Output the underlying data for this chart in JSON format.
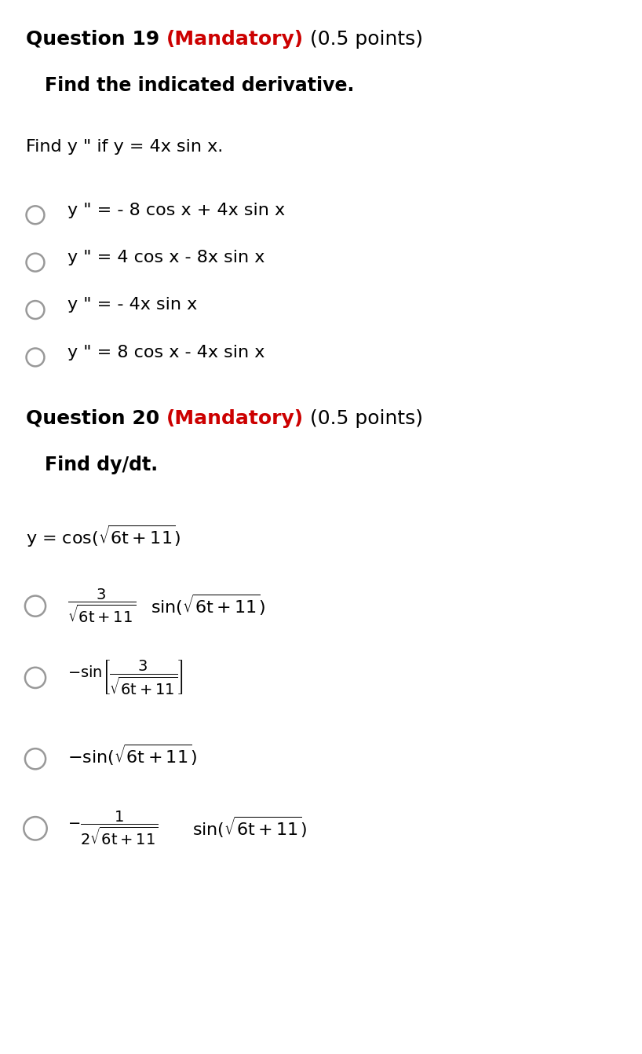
{
  "bg_color": "#ffffff",
  "q19_header_black": "Question 19 ",
  "q19_header_red": "(Mandatory)",
  "q19_header_rest": " (0.5 points)",
  "q19_subheader": "Find the indicated derivative.",
  "q19_problem": "Find y \" if y = 4x sin x.",
  "q19_choices": [
    "y \" = - 8 cos x + 4x sin x",
    "y \" = 4 cos x - 8x sin x",
    "y \" = - 4x sin x",
    "y \" = 8 cos x - 4x sin x"
  ],
  "q20_header_black": "Question 20 ",
  "q20_header_red": "(Mandatory)",
  "q20_header_rest": " (0.5 points)",
  "q20_subheader": "Find dy/dt.",
  "black": "#000000",
  "red": "#cc0000",
  "dark_red": "#cc0000",
  "header_fontsize": 18,
  "subheader_fontsize": 17,
  "body_fontsize": 16,
  "choice_fontsize": 16,
  "math_fontsize": 14
}
